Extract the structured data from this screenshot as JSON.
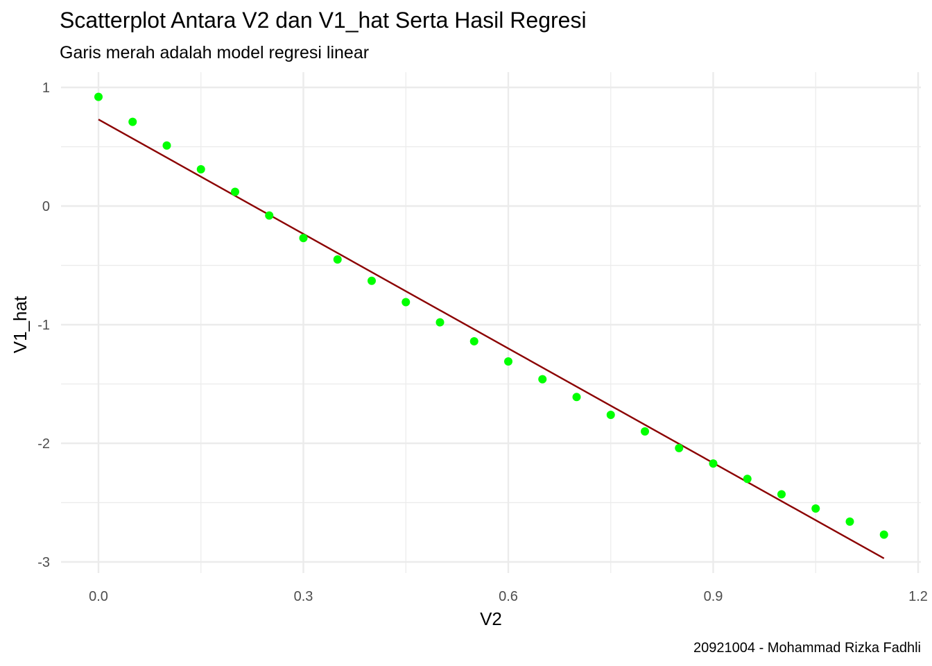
{
  "chart_data": {
    "type": "scatter",
    "title": "Scatterplot Antara V2 dan V1_hat Serta Hasil Regresi",
    "subtitle": "Garis merah adalah model regresi linear",
    "caption": "20921004 - Mohammad Rizka Fadhli",
    "xlabel": "V2",
    "ylabel": "V1_hat",
    "xlim": [
      -0.04,
      1.2
    ],
    "ylim": [
      -3.1,
      1.1
    ],
    "x_ticks": [
      0.0,
      0.3,
      0.6,
      0.9,
      1.2
    ],
    "x_tick_labels": [
      "0.0",
      "0.3",
      "0.6",
      "0.9",
      "1.2"
    ],
    "x_minor_ticks": [
      0.15,
      0.45,
      0.75,
      1.05
    ],
    "y_ticks": [
      -3,
      -2,
      -1,
      0,
      1
    ],
    "y_tick_labels": [
      "-3",
      "-2",
      "-1",
      "0",
      "1"
    ],
    "y_minor_ticks": [
      -2.5,
      -1.5,
      -0.5,
      0.5
    ],
    "grid": true,
    "point_color": "#00ff00",
    "line_color": "#8b0000",
    "grid_color": "#ebebeb",
    "series": [
      {
        "type": "points",
        "x": [
          0.0,
          0.05,
          0.1,
          0.15,
          0.2,
          0.25,
          0.3,
          0.35,
          0.4,
          0.45,
          0.5,
          0.55,
          0.6,
          0.65,
          0.7,
          0.75,
          0.8,
          0.85,
          0.9,
          0.95,
          1.0,
          1.05,
          1.1,
          1.15
        ],
        "y": [
          0.92,
          0.71,
          0.51,
          0.31,
          0.12,
          -0.08,
          -0.27,
          -0.45,
          -0.63,
          -0.81,
          -0.98,
          -1.14,
          -1.31,
          -1.46,
          -1.61,
          -1.76,
          -1.9,
          -2.04,
          -2.17,
          -2.3,
          -2.43,
          -2.55,
          -2.66,
          -2.77
        ]
      },
      {
        "type": "regression-line",
        "x": [
          0.0,
          1.15
        ],
        "y": [
          0.73,
          -2.97
        ]
      }
    ]
  }
}
